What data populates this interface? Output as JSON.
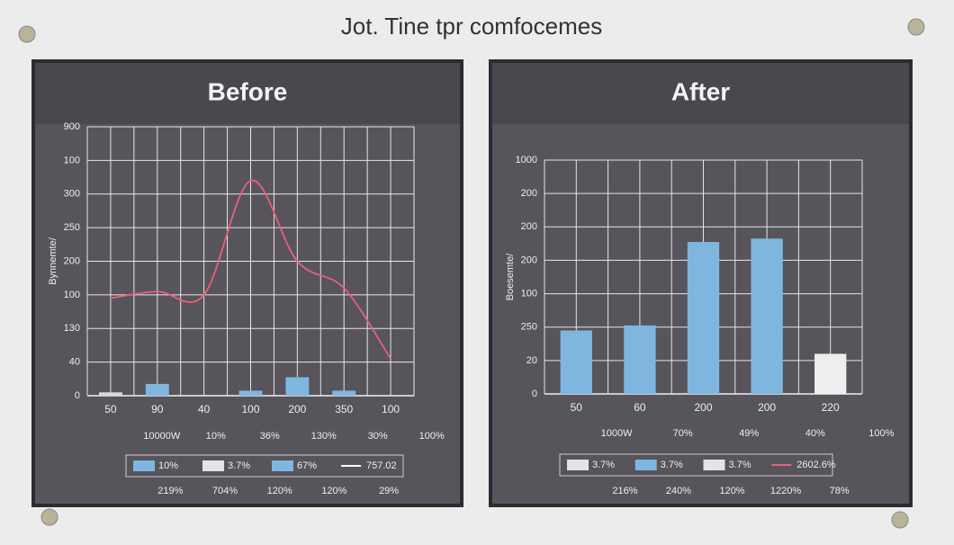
{
  "title": "Jot. Tine tpr comfocemes",
  "chart_data": [
    {
      "type": "bar",
      "title": "Before",
      "ylabel": "Bynnemte/",
      "categories": [
        "50",
        "90",
        "40",
        "100",
        "200",
        "350",
        "100"
      ],
      "ylim": [
        0,
        8
      ],
      "yticks": [
        {
          "value": 0,
          "label": "0"
        },
        {
          "value": 1,
          "label": "40"
        },
        {
          "value": 2,
          "label": "130"
        },
        {
          "value": 3,
          "label": "100"
        },
        {
          "value": 4,
          "label": "200"
        },
        {
          "value": 5,
          "label": "250"
        },
        {
          "value": 6,
          "label": "300"
        },
        {
          "value": 7,
          "label": "100"
        },
        {
          "value": 8,
          "label": "900"
        }
      ],
      "grid": true,
      "series": [
        {
          "kind": "bar",
          "colors": [
            "#d8d8d8",
            "#7fb6e0",
            "#7fb6e0",
            "#7fb6e0",
            "#7fb6e0",
            "#7fb6e0",
            "#7fb6e0"
          ],
          "values": [
            0.1,
            0.35,
            null,
            0.15,
            0.55,
            0.15,
            null
          ]
        },
        {
          "kind": "line",
          "color": "#e8607a",
          "values": [
            2.9,
            3.1,
            3.0,
            6.4,
            4.0,
            3.2,
            1.1
          ]
        }
      ],
      "row_labels": [
        "10000W",
        "10%",
        "36%",
        "130%",
        "30%",
        "100%"
      ],
      "legend": [
        {
          "label": "10%",
          "color": "#7fb6e0",
          "kind": "box"
        },
        {
          "label": "3.7%",
          "color": "#e4e4e4",
          "kind": "box"
        },
        {
          "label": "67%",
          "color": "#7fb6e0",
          "kind": "box"
        },
        {
          "label": "757.02",
          "color": "#ffffff",
          "kind": "line"
        }
      ],
      "footer_labels": [
        "219%",
        "704%",
        "120%",
        "120%",
        "29%"
      ]
    },
    {
      "type": "bar",
      "title": "After",
      "ylabel": "Boesemte/",
      "categories": [
        "50",
        "60",
        "200",
        "200",
        "220"
      ],
      "ylim": [
        0,
        7
      ],
      "yticks": [
        {
          "value": 0,
          "label": "0"
        },
        {
          "value": 1,
          "label": "20"
        },
        {
          "value": 2,
          "label": "250"
        },
        {
          "value": 3,
          "label": "100"
        },
        {
          "value": 4,
          "label": "200"
        },
        {
          "value": 5,
          "label": "200"
        },
        {
          "value": 6,
          "label": "200"
        },
        {
          "value": 7,
          "label": "1000"
        }
      ],
      "grid": true,
      "series": [
        {
          "kind": "bar",
          "colors": [
            "#7fb6e0",
            "#7fb6e0",
            "#7fb6e0",
            "#7fb6e0",
            "#eeeeee"
          ],
          "values": [
            1.9,
            2.05,
            4.55,
            4.65,
            1.2
          ]
        }
      ],
      "row_labels": [
        "1000W",
        "70%",
        "49%",
        "40%",
        "100%"
      ],
      "legend": [
        {
          "label": "3.7%",
          "color": "#e4e4e4",
          "kind": "box"
        },
        {
          "label": "3.7%",
          "color": "#7fb6e0",
          "kind": "box"
        },
        {
          "label": "3.7%",
          "color": "#e4e4e4",
          "kind": "box"
        },
        {
          "label": "2602.6%",
          "color": "#e8607a",
          "kind": "line"
        }
      ],
      "footer_labels": [
        "216%",
        "240%",
        "120%",
        "1220%",
        "78%"
      ]
    }
  ]
}
